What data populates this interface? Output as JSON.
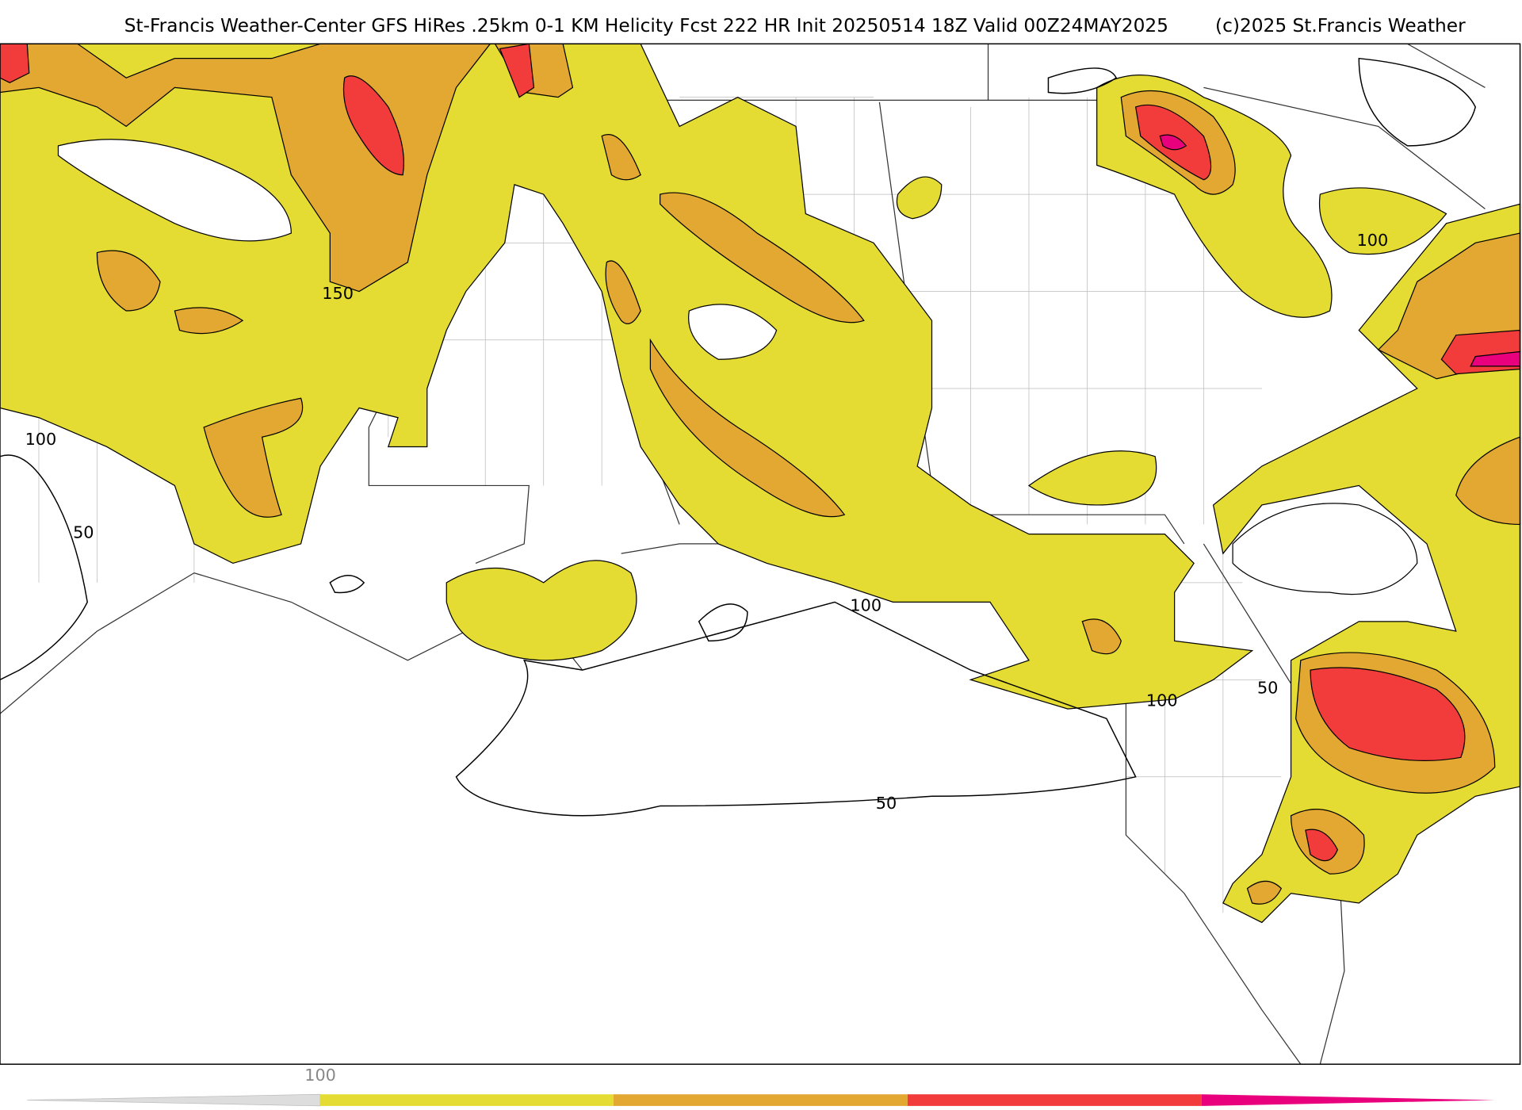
{
  "header": {
    "title": "St-Francis Weather-Center GFS HiRes .25km 0-1 KM Helicity Fcst 222 HR Init 20250514 18Z  Valid 00Z24MAY2025",
    "credit": "(c)2025 St.Francis Weather"
  },
  "contour_labels": [
    "150",
    "100",
    "50",
    "100",
    "100",
    "50",
    "50",
    "100"
  ],
  "colorbar": {
    "label": "100"
  }
}
